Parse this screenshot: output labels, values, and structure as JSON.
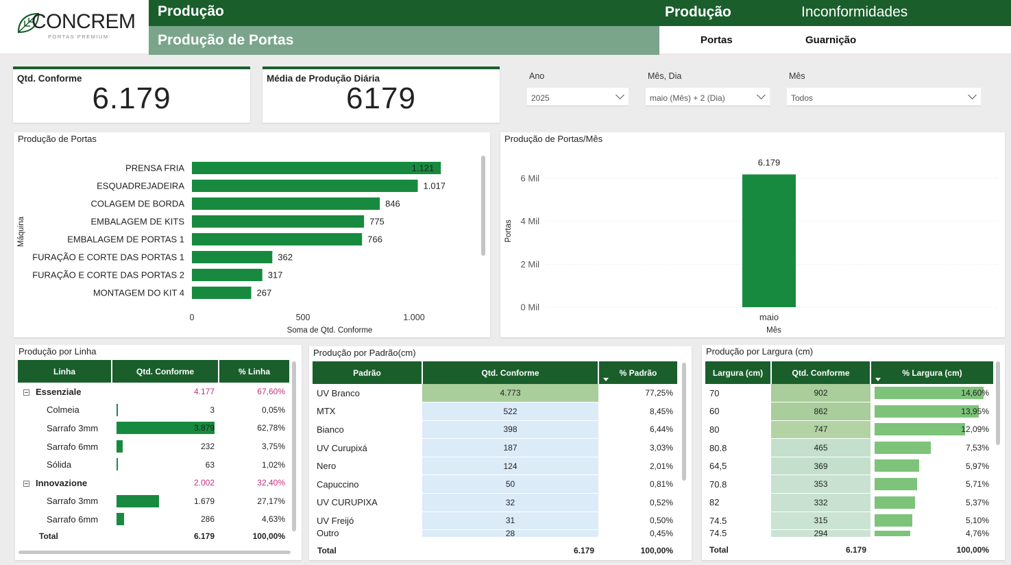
{
  "brand": {
    "name": "CONCREM",
    "tagline": "PORTAS PREMIUM"
  },
  "header": {
    "section": "Produção",
    "page": "Produção de Portas",
    "nav_main": [
      "Produção",
      "Inconformidades"
    ],
    "nav_sub": [
      "Portas",
      "Guarnição"
    ]
  },
  "kpis": [
    {
      "label": "Qtd. Conforme",
      "value": "6.179"
    },
    {
      "label": "Média de Produção Diária",
      "value": "6179"
    }
  ],
  "filters": [
    {
      "label": "Ano",
      "value": "2025"
    },
    {
      "label": "Mês, Dia",
      "value": "maio (Mês) + 2 (Dia)"
    },
    {
      "label": "Mês",
      "value": "Todos"
    }
  ],
  "chart_data": [
    {
      "type": "bar",
      "orientation": "horizontal",
      "title": "Produção de Portas",
      "ylabel": "Máquina",
      "xlabel": "Soma de Qtd. Conforme",
      "categories": [
        "PRENSA FRIA",
        "ESQUADREJADEIRA",
        "COLAGEM DE BORDA",
        "EMBALAGEM DE KITS",
        "EMBALAGEM DE PORTAS 1",
        "FURAÇÃO E CORTE DAS PORTAS 1",
        "FURAÇÃO E CORTE DAS PORTAS 2",
        "MONTAGEM DO KIT 4"
      ],
      "values": [
        1121,
        1017,
        846,
        775,
        766,
        362,
        317,
        267
      ],
      "labels": [
        "1.121",
        "1.017",
        "846",
        "775",
        "766",
        "362",
        "317",
        "267"
      ],
      "xticks": [
        "0",
        "500",
        "1.000"
      ],
      "xlim": [
        0,
        1150
      ],
      "color": "#188a3f"
    },
    {
      "type": "bar",
      "title": "Produção de Portas/Mês",
      "ylabel": "Portas",
      "xlabel": "Mês",
      "categories": [
        "maio"
      ],
      "values": [
        6179
      ],
      "labels": [
        "6.179"
      ],
      "yticks": [
        "0 Mil",
        "2 Mil",
        "4 Mil",
        "6 Mil"
      ],
      "ylim": [
        0,
        6000
      ],
      "grid": true,
      "color": "#188a3f"
    }
  ],
  "tables": {
    "linha": {
      "title": "Produção por Linha",
      "headers": [
        "Linha",
        "Qtd. Conforme",
        "% Linha"
      ],
      "rows": [
        {
          "name": "Essenziale",
          "qty": "4.177",
          "pct": "67,60%",
          "group": true,
          "frac": 0
        },
        {
          "name": "Colmeia",
          "qty": "3",
          "pct": "0,05%",
          "group": false,
          "frac": 0.0008
        },
        {
          "name": "Sarrafo 3mm",
          "qty": "3.879",
          "pct": "62,78%",
          "group": false,
          "frac": 1
        },
        {
          "name": "Sarrafo 6mm",
          "qty": "232",
          "pct": "3,75%",
          "group": false,
          "frac": 0.06
        },
        {
          "name": "Sólida",
          "qty": "63",
          "pct": "1,02%",
          "group": false,
          "frac": 0.016
        },
        {
          "name": "Innovazione",
          "qty": "2.002",
          "pct": "32,40%",
          "group": true,
          "frac": 0
        },
        {
          "name": "Sarrafo 3mm",
          "qty": "1.679",
          "pct": "27,17%",
          "group": false,
          "frac": 0.433
        },
        {
          "name": "Sarrafo 6mm",
          "qty": "286",
          "pct": "4,63%",
          "group": false,
          "frac": 0.074
        }
      ],
      "total": {
        "name": "Total",
        "qty": "6.179",
        "pct": "100,00%"
      }
    },
    "padrao": {
      "title": "Produção por Padrão(cm)",
      "headers": [
        "Padrão",
        "Qtd. Conforme",
        "% Padrão"
      ],
      "rows": [
        {
          "name": "UV Branco",
          "qty": "4.773",
          "pct": "77,25%",
          "hi": true
        },
        {
          "name": "MTX",
          "qty": "522",
          "pct": "8,45%",
          "hi": false
        },
        {
          "name": "Bianco",
          "qty": "398",
          "pct": "6,44%",
          "hi": false
        },
        {
          "name": "UV Curupixá",
          "qty": "187",
          "pct": "3,03%",
          "hi": false
        },
        {
          "name": "Nero",
          "qty": "124",
          "pct": "2,01%",
          "hi": false
        },
        {
          "name": "Capuccino",
          "qty": "50",
          "pct": "0,81%",
          "hi": false
        },
        {
          "name": "UV CURUPIXA",
          "qty": "32",
          "pct": "0,52%",
          "hi": false
        },
        {
          "name": "UV Freijó",
          "qty": "31",
          "pct": "0,50%",
          "hi": false
        },
        {
          "name": "Outro",
          "qty": "28",
          "pct": "0,45%",
          "hi": false
        }
      ],
      "total": {
        "name": "Total",
        "qty": "6.179",
        "pct": "100,00%"
      }
    },
    "largura": {
      "title": "Produção por Largura (cm)",
      "headers": [
        "Largura (cm)",
        "Qtd. Conforme",
        "% Largura (cm)"
      ],
      "rows": [
        {
          "name": "70",
          "qty": "902",
          "pct": "14,60%",
          "shade": "#a9cd9b",
          "frac": 1
        },
        {
          "name": "60",
          "qty": "862",
          "pct": "13,95%",
          "shade": "#a9cd9b",
          "frac": 0.955
        },
        {
          "name": "80",
          "qty": "747",
          "pct": "12,09%",
          "shade": "#b3d3a4",
          "frac": 0.828
        },
        {
          "name": "80.8",
          "qty": "465",
          "pct": "7,53%",
          "shade": "#c4dfcc",
          "frac": 0.516
        },
        {
          "name": "64,5",
          "qty": "369",
          "pct": "5,97%",
          "shade": "#c4dfcc",
          "frac": 0.409
        },
        {
          "name": "70.8",
          "qty": "353",
          "pct": "5,71%",
          "shade": "#c8e1d0",
          "frac": 0.391
        },
        {
          "name": "82",
          "qty": "332",
          "pct": "5,37%",
          "shade": "#c8e1d0",
          "frac": 0.368
        },
        {
          "name": "74.5",
          "qty": "315",
          "pct": "5,10%",
          "shade": "#cbe3d3",
          "frac": 0.349
        },
        {
          "name": "74.5",
          "qty": "294",
          "pct": "4,76%",
          "shade": "#cbe3d3",
          "frac": 0.326
        }
      ],
      "total": {
        "name": "Total",
        "qty": "6.179",
        "pct": "100,00%"
      }
    }
  }
}
